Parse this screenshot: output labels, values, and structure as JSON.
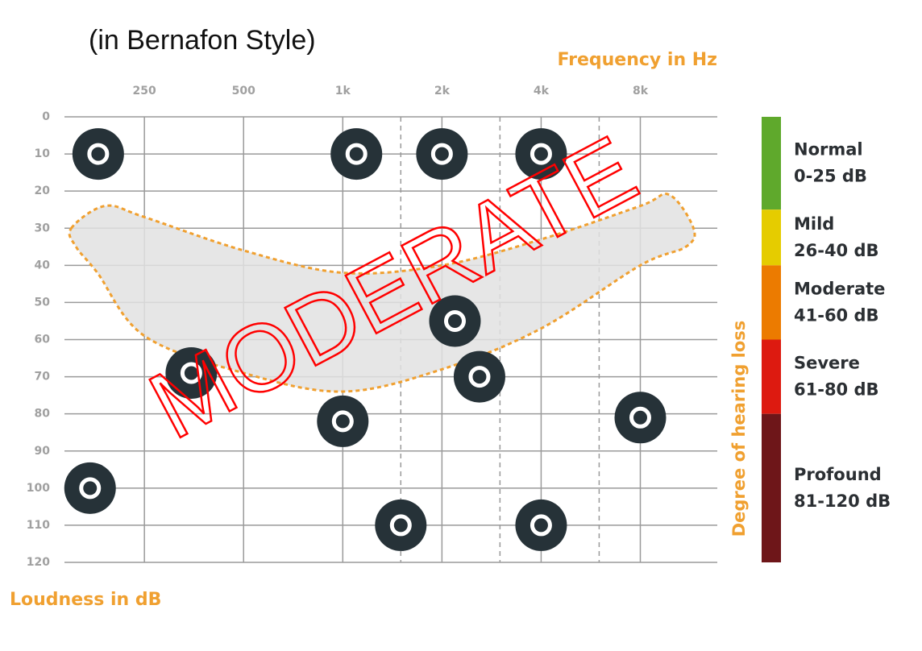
{
  "chart_data": {
    "type": "scatter",
    "title": "(in Bernafon Style)",
    "x_label": "Frequency in Hz",
    "y_label": "Loudness in dB",
    "annotation": "MODERATE",
    "annotation_color": "#ff0000",
    "x_scale": "log",
    "y_inverted": true,
    "grid": true,
    "xlim": [
      143,
      13700
    ],
    "ylim": [
      0,
      120
    ],
    "xticks": [
      250,
      500,
      {
        "value": 1000,
        "label": "1k"
      },
      {
        "value": 2000,
        "label": "2k"
      },
      {
        "value": 4000,
        "label": "4k"
      },
      {
        "value": 8000,
        "label": "8k"
      }
    ],
    "minor_xticks": [
      1500,
      3000,
      6000
    ],
    "yticks": [
      0,
      10,
      20,
      30,
      40,
      50,
      60,
      70,
      80,
      90,
      100,
      110,
      120
    ],
    "x": [
      181,
      1100,
      2000,
      4000,
      2190,
      347,
      2600,
      1000,
      8000,
      171,
      1500,
      4000
    ],
    "values": [
      10,
      10,
      10,
      10,
      55,
      69,
      70,
      82,
      81,
      100,
      110,
      110
    ],
    "color": "#263238",
    "speech_area": {
      "x": [
        150,
        190,
        250,
        500,
        1000,
        2000,
        4000,
        8000,
        9800,
        11600,
        11000,
        8000,
        4000,
        2000,
        1000,
        500,
        250,
        180,
        155
      ],
      "y": [
        30,
        24,
        27,
        36,
        42,
        40,
        33,
        24,
        21,
        30,
        35,
        40,
        57,
        68,
        74,
        69,
        59,
        42,
        35
      ],
      "color": "#e2e2e2",
      "edge_color": "#f0a030"
    },
    "degree_scale": {
      "label": "Degree of hearing loss",
      "bands": [
        {
          "name": "Normal",
          "range": "0-25 dB",
          "upper": 25,
          "color": "#5fa92c"
        },
        {
          "name": "Mild",
          "range": "26-40 dB",
          "upper": 40,
          "color": "#e5cc00"
        },
        {
          "name": "Moderate",
          "range": "41-60 dB",
          "upper": 60,
          "color": "#ec7b00"
        },
        {
          "name": "Severe",
          "range": "61-80 dB",
          "upper": 80,
          "color": "#dd1a10"
        },
        {
          "name": "Profound",
          "range": "81-120 dB",
          "upper": 120,
          "color": "#6e1619"
        }
      ]
    }
  }
}
